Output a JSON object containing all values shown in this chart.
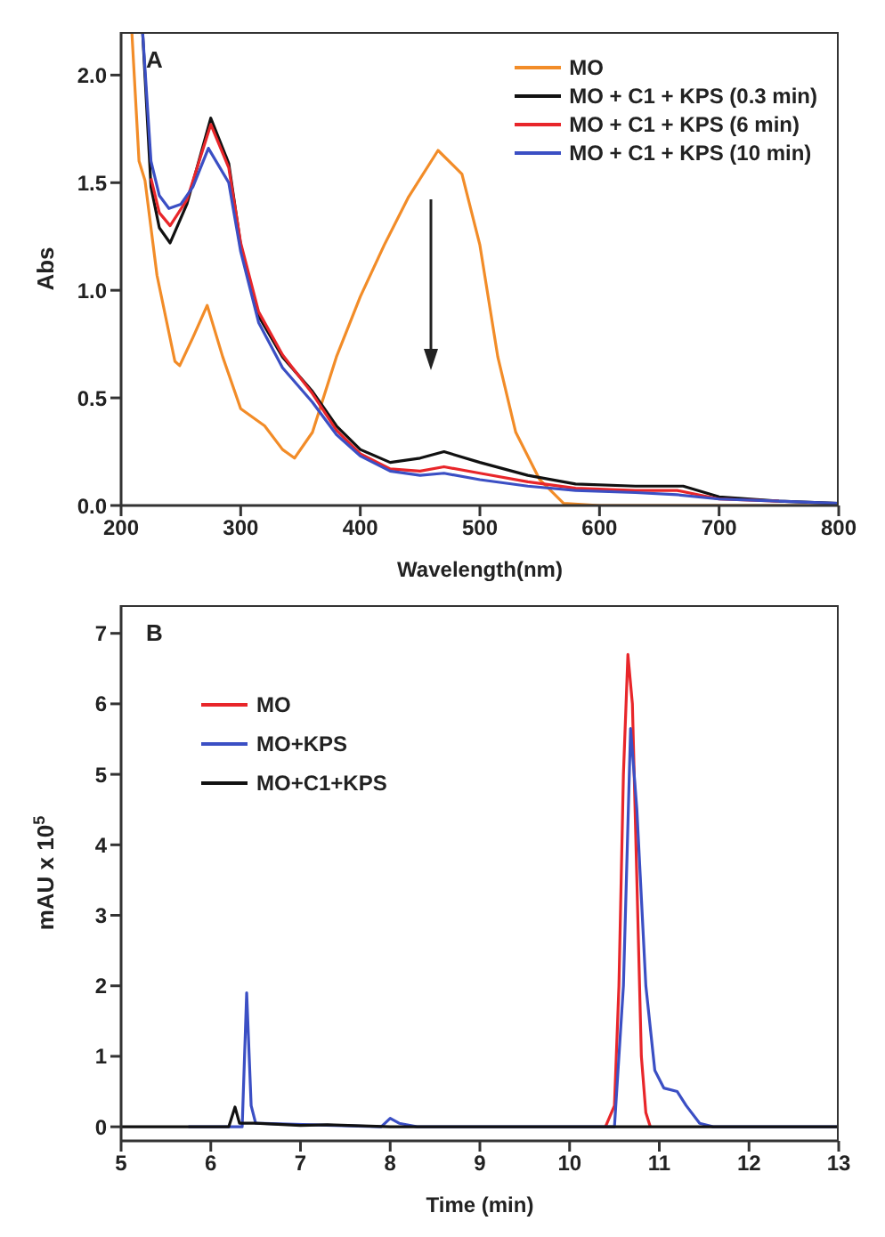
{
  "chart_data": [
    {
      "type": "line",
      "xlabel": "Wavelength(nm)",
      "ylabel": "Abs",
      "annotations": [
        "A"
      ],
      "legend": "top right",
      "xlim": [
        200,
        800
      ],
      "ylim": [
        0,
        2.2
      ],
      "xticks": [
        200,
        300,
        400,
        500,
        600,
        700,
        800
      ],
      "yticks": [
        {
          "value": 0,
          "label": "0.0"
        },
        {
          "value": 0.5,
          "label": "0.5"
        },
        {
          "value": 1,
          "label": "1.0"
        },
        {
          "value": 1.5,
          "label": "1.5"
        },
        {
          "value": 2,
          "label": "2.0"
        }
      ],
      "series": [
        {
          "name": "MO",
          "color": "#f28c28",
          "x": [
            209,
            215,
            220,
            230,
            245,
            249,
            260,
            272,
            285,
            300,
            320,
            335,
            345,
            360,
            380,
            400,
            420,
            440,
            465,
            485,
            500,
            515,
            530,
            550,
            570,
            600,
            700,
            800
          ],
          "values": [
            2.2,
            1.6,
            1.51,
            1.07,
            0.67,
            0.65,
            0.78,
            0.93,
            0.69,
            0.45,
            0.37,
            0.26,
            0.22,
            0.34,
            0.69,
            0.97,
            1.21,
            1.43,
            1.65,
            1.54,
            1.21,
            0.69,
            0.34,
            0.12,
            0.01,
            0,
            0,
            0
          ]
        },
        {
          "name": "MO + C1 + KPS (0.3 min)",
          "color": "#111111",
          "x": [
            218,
            225,
            232,
            241,
            255,
            275,
            290,
            300,
            315,
            335,
            360,
            380,
            400,
            425,
            450,
            470,
            500,
            540,
            580,
            630,
            670,
            700,
            750,
            800
          ],
          "values": [
            2.2,
            1.48,
            1.29,
            1.22,
            1.4,
            1.8,
            1.59,
            1.21,
            0.88,
            0.69,
            0.53,
            0.37,
            0.26,
            0.2,
            0.22,
            0.25,
            0.2,
            0.14,
            0.1,
            0.09,
            0.09,
            0.04,
            0.02,
            0.01
          ]
        },
        {
          "name": "MO + C1 + KPS (6 min)",
          "color": "#e8262a",
          "x": [
            225,
            232,
            241,
            255,
            275,
            290,
            300,
            315,
            335,
            360,
            380,
            400,
            425,
            450,
            470,
            500,
            540,
            580,
            630,
            665,
            700,
            750
          ],
          "values": [
            1.52,
            1.36,
            1.3,
            1.42,
            1.77,
            1.57,
            1.22,
            0.9,
            0.7,
            0.52,
            0.35,
            0.24,
            0.17,
            0.16,
            0.18,
            0.15,
            0.11,
            0.08,
            0.07,
            0.07,
            0.03,
            0.02
          ]
        },
        {
          "name": "MO + C1 + KPS (10 min)",
          "color": "#3b4fc4",
          "x": [
            218,
            225,
            232,
            240,
            250,
            260,
            273,
            290,
            300,
            315,
            335,
            360,
            380,
            400,
            425,
            450,
            470,
            500,
            540,
            580,
            630,
            665,
            700,
            750,
            800
          ],
          "values": [
            2.2,
            1.6,
            1.44,
            1.38,
            1.4,
            1.48,
            1.66,
            1.5,
            1.18,
            0.85,
            0.64,
            0.48,
            0.33,
            0.23,
            0.16,
            0.14,
            0.15,
            0.12,
            0.09,
            0.07,
            0.06,
            0.05,
            0.03,
            0.02,
            0.01
          ]
        }
      ]
    },
    {
      "type": "line",
      "xlabel": "Time (min)",
      "ylabel": "mAU x 10$^{5}$",
      "annotations": [
        "B"
      ],
      "legend": "top left",
      "xlim": [
        5,
        13
      ],
      "ylim": [
        -0.2,
        7.4
      ],
      "xticks": [
        5,
        6,
        7,
        8,
        9,
        10,
        11,
        12,
        13
      ],
      "yticks": [
        0,
        1,
        2,
        3,
        4,
        5,
        6,
        7
      ],
      "series": [
        {
          "name": "MO",
          "color": "#e8262a",
          "x": [
            10.4,
            10.5,
            10.55,
            10.6,
            10.65,
            10.7,
            10.75,
            10.8,
            10.85,
            10.9
          ],
          "values": [
            0,
            0.3,
            2,
            5,
            6.7,
            6,
            3.5,
            1,
            0.2,
            0
          ]
        },
        {
          "name": "MO+KPS",
          "color": "#3b4fc4",
          "x": [
            5.75,
            6.35,
            6.4,
            6.45,
            6.5,
            7.9,
            8.0,
            8.1,
            8.3,
            10.5,
            10.6,
            10.68,
            10.75,
            10.85,
            10.95,
            11.05,
            11.2,
            11.3,
            11.45,
            11.6,
            13
          ],
          "values": [
            0,
            0,
            1.9,
            0.3,
            0.05,
            0,
            0.12,
            0.05,
            0,
            0,
            2,
            5.65,
            4.5,
            2,
            0.8,
            0.55,
            0.5,
            0.3,
            0.05,
            0,
            0
          ]
        },
        {
          "name": "MO+C1+KPS",
          "color": "#111111",
          "x": [
            5,
            6.2,
            6.27,
            6.32,
            6.5,
            7,
            7.3,
            8,
            9,
            13
          ],
          "values": [
            0,
            0,
            0.28,
            0.05,
            0.05,
            0.02,
            0.03,
            0,
            0,
            0
          ]
        }
      ]
    }
  ]
}
